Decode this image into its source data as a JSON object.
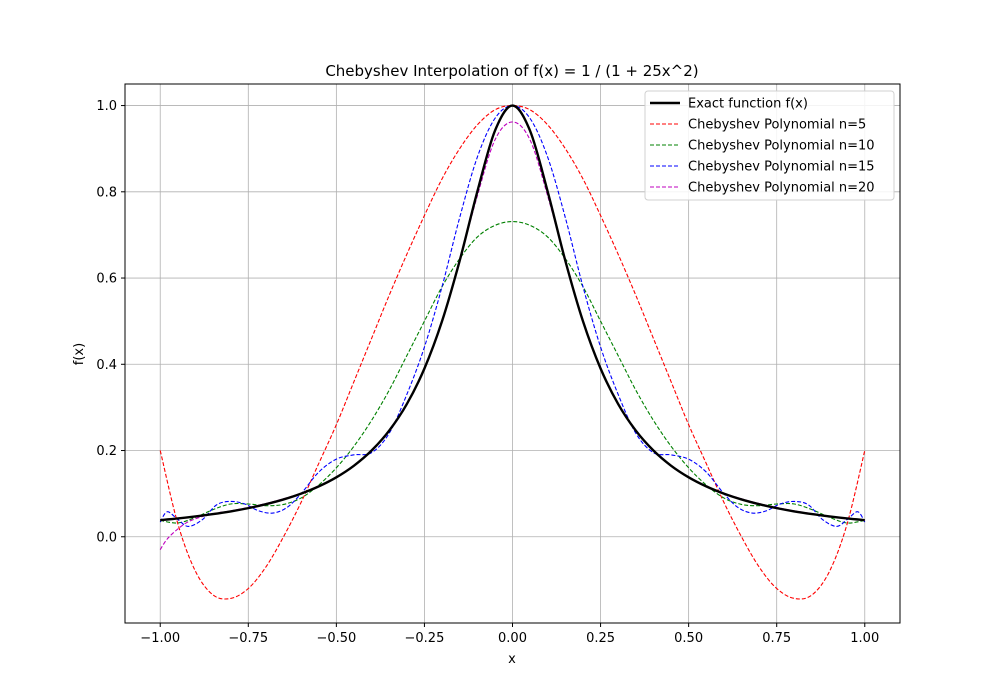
{
  "chart_data": {
    "type": "line",
    "title": "Chebyshev Interpolation of f(x) = 1 / (1 + 25x^2)",
    "xlabel": "x",
    "ylabel": "f(x)",
    "xlim": [
      -1.1,
      1.1
    ],
    "ylim": [
      -0.2,
      1.05
    ],
    "xticks": [
      -1.0,
      -0.75,
      -0.5,
      -0.25,
      0.0,
      0.25,
      0.5,
      0.75,
      1.0
    ],
    "xtick_labels": [
      "−1.00",
      "−0.75",
      "−0.50",
      "−0.25",
      "0.00",
      "0.25",
      "0.50",
      "0.75",
      "1.00"
    ],
    "yticks": [
      0.0,
      0.2,
      0.4,
      0.6,
      0.8,
      1.0
    ],
    "ytick_labels": [
      "0.0",
      "0.2",
      "0.4",
      "0.6",
      "0.8",
      "1.0"
    ],
    "grid": true,
    "legend_position": "top-right",
    "series": [
      {
        "name": "Exact function f(x)",
        "color": "#000000",
        "style": "solid",
        "x": [
          -1.0,
          -0.95,
          -0.9,
          -0.85,
          -0.8,
          -0.75,
          -0.7,
          -0.65,
          -0.6,
          -0.55,
          -0.5,
          -0.45,
          -0.4,
          -0.35,
          -0.3,
          -0.25,
          -0.2,
          -0.15,
          -0.1,
          -0.05,
          0.0,
          0.05,
          0.1,
          0.15,
          0.2,
          0.25,
          0.3,
          0.35,
          0.4,
          0.45,
          0.5,
          0.55,
          0.6,
          0.65,
          0.7,
          0.75,
          0.8,
          0.85,
          0.9,
          0.95,
          1.0
        ],
        "y": [
          0.0385,
          0.0424,
          0.0471,
          0.0525,
          0.0588,
          0.0664,
          0.0755,
          0.0865,
          0.1,
          0.1168,
          0.1379,
          0.1649,
          0.2,
          0.2462,
          0.3077,
          0.3902,
          0.5,
          0.64,
          0.8,
          0.9412,
          1.0,
          0.9412,
          0.8,
          0.64,
          0.5,
          0.3902,
          0.3077,
          0.2462,
          0.2,
          0.1649,
          0.1379,
          0.1168,
          0.1,
          0.0865,
          0.0755,
          0.0664,
          0.0588,
          0.0525,
          0.0471,
          0.0424,
          0.0385
        ]
      },
      {
        "name": "Chebyshev Polynomial n=5",
        "color": "#ff0000",
        "style": "dashed",
        "x": [
          -1.0,
          -0.95,
          -0.9,
          -0.85,
          -0.8,
          -0.75,
          -0.7,
          -0.65,
          -0.6,
          -0.55,
          -0.5,
          -0.45,
          -0.4,
          -0.35,
          -0.3,
          -0.25,
          -0.2,
          -0.15,
          -0.1,
          -0.05,
          0.0,
          0.05,
          0.1,
          0.15,
          0.2,
          0.25,
          0.3,
          0.35,
          0.4,
          0.45,
          0.5,
          0.55,
          0.6,
          0.65,
          0.7,
          0.75,
          0.8,
          0.85,
          0.9,
          0.95,
          1.0
        ],
        "y": [
          0.2,
          0.03,
          -0.08,
          -0.135,
          -0.143,
          -0.12,
          -0.07,
          0.0,
          0.08,
          0.17,
          0.26,
          0.36,
          0.46,
          0.56,
          0.655,
          0.745,
          0.83,
          0.9,
          0.955,
          0.99,
          1.0,
          0.99,
          0.955,
          0.9,
          0.83,
          0.745,
          0.655,
          0.56,
          0.46,
          0.36,
          0.26,
          0.17,
          0.08,
          0.0,
          -0.07,
          -0.12,
          -0.143,
          -0.135,
          -0.08,
          0.03,
          0.2
        ]
      },
      {
        "name": "Chebyshev Polynomial n=10",
        "color": "#008000",
        "style": "dashed",
        "x": [
          -1.0,
          -0.95,
          -0.9,
          -0.85,
          -0.8,
          -0.75,
          -0.7,
          -0.65,
          -0.6,
          -0.55,
          -0.5,
          -0.45,
          -0.4,
          -0.35,
          -0.3,
          -0.25,
          -0.2,
          -0.15,
          -0.1,
          -0.05,
          0.0,
          0.05,
          0.1,
          0.15,
          0.2,
          0.25,
          0.3,
          0.35,
          0.4,
          0.45,
          0.5,
          0.55,
          0.6,
          0.65,
          0.7,
          0.75,
          0.8,
          0.85,
          0.9,
          0.95,
          1.0
        ],
        "y": [
          0.038,
          0.032,
          0.045,
          0.063,
          0.076,
          0.076,
          0.072,
          0.075,
          0.09,
          0.12,
          0.16,
          0.21,
          0.27,
          0.34,
          0.42,
          0.5,
          0.58,
          0.645,
          0.695,
          0.722,
          0.731,
          0.722,
          0.695,
          0.645,
          0.58,
          0.5,
          0.42,
          0.34,
          0.27,
          0.21,
          0.16,
          0.12,
          0.09,
          0.075,
          0.072,
          0.076,
          0.076,
          0.063,
          0.045,
          0.032,
          0.038
        ]
      },
      {
        "name": "Chebyshev Polynomial n=15",
        "color": "#0000ff",
        "style": "dashed",
        "x": [
          -1.0,
          -0.98,
          -0.95,
          -0.92,
          -0.88,
          -0.84,
          -0.8,
          -0.76,
          -0.72,
          -0.68,
          -0.64,
          -0.6,
          -0.55,
          -0.5,
          -0.45,
          -0.4,
          -0.35,
          -0.3,
          -0.25,
          -0.2,
          -0.15,
          -0.1,
          -0.05,
          0.0,
          0.05,
          0.1,
          0.15,
          0.2,
          0.25,
          0.3,
          0.35,
          0.4,
          0.45,
          0.5,
          0.55,
          0.6,
          0.64,
          0.68,
          0.72,
          0.76,
          0.8,
          0.84,
          0.88,
          0.92,
          0.95,
          0.98,
          1.0
        ],
        "y": [
          0.034,
          0.058,
          0.04,
          0.024,
          0.04,
          0.074,
          0.082,
          0.076,
          0.06,
          0.055,
          0.068,
          0.1,
          0.15,
          0.18,
          0.19,
          0.195,
          0.24,
          0.33,
          0.44,
          0.58,
          0.74,
          0.88,
          0.97,
          1.0,
          0.97,
          0.88,
          0.74,
          0.58,
          0.44,
          0.33,
          0.24,
          0.195,
          0.19,
          0.18,
          0.15,
          0.1,
          0.068,
          0.055,
          0.06,
          0.076,
          0.082,
          0.074,
          0.04,
          0.024,
          0.04,
          0.058,
          0.034
        ]
      },
      {
        "name": "Chebyshev Polynomial n=20",
        "color": "#bf00bf",
        "style": "dashed",
        "x": [
          -1.0,
          -0.98,
          -0.95,
          -0.92,
          -0.88,
          -0.84,
          -0.8,
          -0.75,
          -0.7,
          -0.65,
          -0.6,
          -0.55,
          -0.5,
          -0.45,
          -0.4,
          -0.35,
          -0.3,
          -0.25,
          -0.2,
          -0.15,
          -0.1,
          -0.05,
          0.0,
          0.05,
          0.1,
          0.15,
          0.2,
          0.25,
          0.3,
          0.35,
          0.4,
          0.45,
          0.5,
          0.55,
          0.6,
          0.65,
          0.7,
          0.75,
          0.8,
          0.84,
          0.88,
          0.92,
          0.95,
          0.98,
          1.0
        ],
        "y": [
          -0.03,
          -0.005,
          0.018,
          0.035,
          0.047,
          0.055,
          0.06,
          0.068,
          0.077,
          0.088,
          0.101,
          0.117,
          0.138,
          0.165,
          0.2,
          0.246,
          0.308,
          0.39,
          0.5,
          0.64,
          0.79,
          0.92,
          0.962,
          0.92,
          0.79,
          0.64,
          0.5,
          0.39,
          0.308,
          0.246,
          0.2,
          0.165,
          0.138,
          0.117,
          0.101,
          0.088,
          0.077,
          0.068,
          0.06,
          0.055,
          0.05,
          0.045,
          0.042,
          0.04,
          0.038
        ]
      }
    ]
  }
}
